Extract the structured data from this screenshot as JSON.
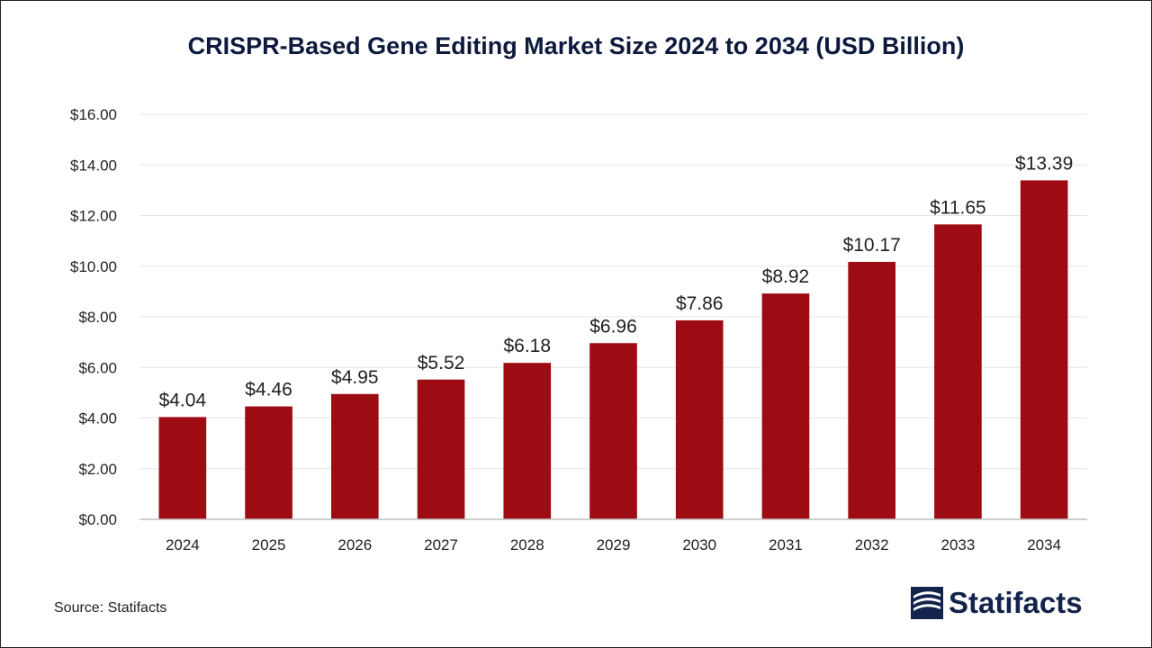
{
  "colors": {
    "bar": "#9e0c13",
    "title": "#0e1a3d",
    "axis_text": "#222222",
    "grid": "#e6e6e6",
    "axis_line": "#bfbfbf",
    "brand": "#14234b"
  },
  "source_text": "Source: Statifacts",
  "brand_name": "Statifacts",
  "chart_data": {
    "type": "bar",
    "title": "CRISPR-Based Gene Editing Market Size 2024 to 2034 (USD Billion)",
    "xlabel": "",
    "ylabel": "",
    "categories": [
      "2024",
      "2025",
      "2026",
      "2027",
      "2028",
      "2029",
      "2030",
      "2031",
      "2032",
      "2033",
      "2034"
    ],
    "values": [
      4.04,
      4.46,
      4.95,
      5.52,
      6.18,
      6.96,
      7.86,
      8.92,
      10.17,
      11.65,
      13.39
    ],
    "value_labels": [
      "$4.04",
      "$4.46",
      "$4.95",
      "$5.52",
      "$6.18",
      "$6.96",
      "$7.86",
      "$8.92",
      "$10.17",
      "$11.65",
      "$13.39"
    ],
    "y_ticks": [
      0,
      2,
      4,
      6,
      8,
      10,
      12,
      14,
      16
    ],
    "y_tick_labels": [
      "$0.00",
      "$2.00",
      "$4.00",
      "$6.00",
      "$8.00",
      "$10.00",
      "$12.00",
      "$14.00",
      "$16.00"
    ],
    "ylim": [
      0,
      16
    ],
    "grid": true,
    "legend": "none"
  }
}
